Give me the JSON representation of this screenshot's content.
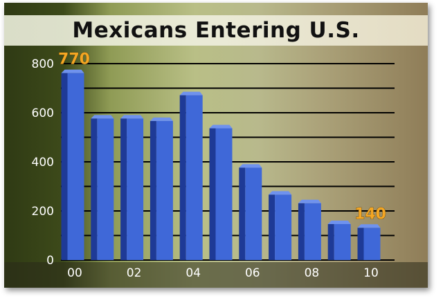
{
  "chart_data": {
    "type": "bar",
    "title": "Mexicans Entering U.S.",
    "categories": [
      "00",
      "01",
      "02",
      "03",
      "04",
      "05",
      "06",
      "07",
      "08",
      "09",
      "10"
    ],
    "x_tick_labels": [
      "00",
      "02",
      "04",
      "06",
      "08",
      "10"
    ],
    "values": [
      770,
      585,
      585,
      575,
      680,
      545,
      385,
      275,
      240,
      155,
      140
    ],
    "data_labels": [
      {
        "category": "00",
        "text": "770"
      },
      {
        "category": "10",
        "text": "140"
      }
    ],
    "y_ticks": [
      0,
      200,
      400,
      600,
      800
    ],
    "ylim": [
      0,
      800
    ],
    "grid": true,
    "legend": "none",
    "colors": {
      "bar_front": "#3f68d8",
      "bar_side": "#1e3a96",
      "bar_top": "#6f92ee",
      "gridline": "#000000",
      "data_label": "#f5a623"
    }
  }
}
